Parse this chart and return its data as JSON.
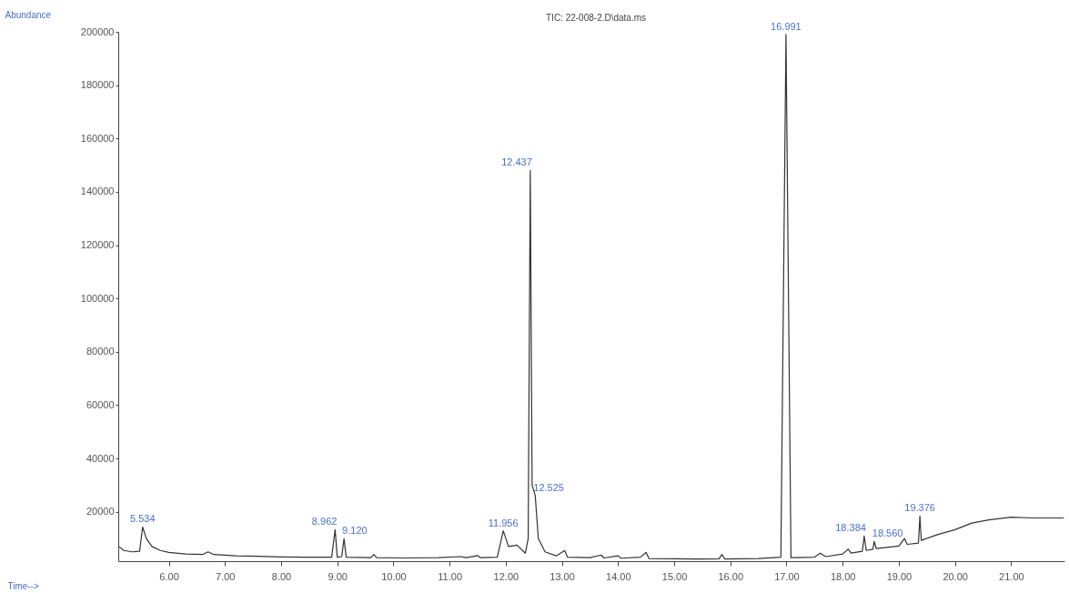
{
  "chart_data": {
    "type": "line",
    "title": "TIC: 22-008-2.D\\data.ms",
    "xlabel": "Time-->",
    "ylabel": "Abundance",
    "xlim": [
      5.1,
      21.95
    ],
    "ylim": [
      1500,
      200000
    ],
    "xticks": [
      {
        "value": 6,
        "label": "6.00"
      },
      {
        "value": 7,
        "label": "7.00"
      },
      {
        "value": 8,
        "label": "8.00"
      },
      {
        "value": 9,
        "label": "9.00"
      },
      {
        "value": 10,
        "label": "10.00"
      },
      {
        "value": 11,
        "label": "11.00"
      },
      {
        "value": 12,
        "label": "12.00"
      },
      {
        "value": 13,
        "label": "13.00"
      },
      {
        "value": 14,
        "label": "14.00"
      },
      {
        "value": 15,
        "label": "15.00"
      },
      {
        "value": 16,
        "label": "16.00"
      },
      {
        "value": 17,
        "label": "17.00"
      },
      {
        "value": 18,
        "label": "18.00"
      },
      {
        "value": 19,
        "label": "19.00"
      },
      {
        "value": 20,
        "label": "20.00"
      },
      {
        "value": 21,
        "label": "21.00"
      }
    ],
    "yticks": [
      20000,
      40000,
      60000,
      80000,
      100000,
      120000,
      140000,
      160000,
      180000,
      200000
    ],
    "grid": false,
    "marker": "none",
    "line_style": "solid",
    "series": [
      {
        "color": "#333333",
        "x": [
          5.11,
          5.2,
          5.35,
          5.48,
          5.534,
          5.6,
          5.7,
          5.85,
          6.0,
          6.3,
          6.6,
          6.7,
          6.8,
          7.2,
          7.6,
          8.0,
          8.4,
          8.9,
          8.962,
          9.0,
          9.08,
          9.12,
          9.16,
          9.6,
          9.65,
          9.7,
          10.2,
          10.8,
          11.2,
          11.3,
          11.5,
          11.55,
          11.85,
          11.956,
          12.05,
          12.2,
          12.35,
          12.4,
          12.437,
          12.47,
          12.525,
          12.58,
          12.7,
          12.9,
          13.05,
          13.1,
          13.5,
          13.7,
          13.75,
          14.0,
          14.05,
          14.4,
          14.5,
          14.55,
          15.0,
          15.5,
          15.8,
          15.85,
          15.9,
          16.5,
          16.9,
          16.991,
          17.08,
          17.5,
          17.6,
          17.7,
          18.0,
          18.1,
          18.15,
          18.35,
          18.384,
          18.42,
          18.54,
          18.56,
          18.6,
          19.0,
          19.1,
          19.15,
          19.35,
          19.376,
          19.4,
          19.7,
          20.0,
          20.3,
          20.6,
          21.0,
          21.4,
          21.94
        ],
        "values": [
          7000,
          5500,
          5000,
          5200,
          14300,
          10000,
          7000,
          5500,
          4800,
          4200,
          4000,
          5000,
          4000,
          3500,
          3300,
          3100,
          3000,
          3000,
          13300,
          3000,
          3200,
          9900,
          3000,
          2800,
          4000,
          2800,
          2700,
          2800,
          3200,
          2800,
          3600,
          2800,
          3000,
          12900,
          7000,
          7500,
          4500,
          10000,
          148000,
          30000,
          26200,
          10000,
          5000,
          3500,
          5500,
          3000,
          2800,
          3800,
          2700,
          3500,
          2600,
          3000,
          4800,
          2500,
          2400,
          2300,
          2400,
          4000,
          2300,
          2500,
          3000,
          199000,
          2800,
          3000,
          4500,
          3200,
          4200,
          6000,
          4500,
          5200,
          10900,
          5500,
          6000,
          8900,
          6200,
          7200,
          10000,
          7800,
          8300,
          18400,
          9300,
          11500,
          13300,
          15800,
          17000,
          18000,
          17700,
          17700
        ]
      }
    ],
    "annotations": [
      {
        "text": "5.534",
        "x": 5.534,
        "y": 14300
      },
      {
        "text": "8.962",
        "x": 8.962,
        "y": 13300
      },
      {
        "text": "9.120",
        "x": 9.12,
        "y": 9900
      },
      {
        "text": "11.956",
        "x": 11.956,
        "y": 12900
      },
      {
        "text": "12.437",
        "x": 12.437,
        "y": 148000
      },
      {
        "text": "12.525",
        "x": 12.525,
        "y": 26200
      },
      {
        "text": "16.991",
        "x": 16.991,
        "y": 199000
      },
      {
        "text": "18.384",
        "x": 18.384,
        "y": 10900
      },
      {
        "text": "18.560",
        "x": 18.56,
        "y": 8900
      },
      {
        "text": "19.376",
        "x": 19.376,
        "y": 18400
      }
    ]
  }
}
